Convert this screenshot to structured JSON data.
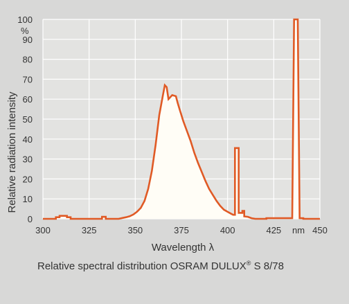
{
  "chart_data": {
    "type": "line",
    "title": "",
    "caption": "Relative spectral distribution OSRAM DULUX",
    "caption_sup": "®",
    "caption_tail": " S 8/78",
    "xlabel": "Wavelength λ",
    "ylabel": "Relative radiation intensity",
    "x_unit": "nm",
    "y_unit": "%",
    "xlim": [
      300,
      450
    ],
    "ylim": [
      0,
      100
    ],
    "x_ticks": [
      "300",
      "325",
      "350",
      "375",
      "400",
      "425",
      "450"
    ],
    "y_ticks": [
      "0",
      "10",
      "20",
      "30",
      "40",
      "50",
      "60",
      "70",
      "80",
      "90",
      "100"
    ],
    "grid": true,
    "colors": {
      "curve": "#e05a25",
      "fill": "#fffdf6",
      "plot_bg": "#e3e3e1",
      "grid": "#ffffff",
      "page_bg": "#d8d8d7"
    },
    "series": [
      {
        "values": [
          [
            300,
            0
          ],
          [
            307,
            0
          ],
          [
            307,
            0.8
          ],
          [
            309,
            0.8
          ],
          [
            309,
            1.5
          ],
          [
            313,
            1.5
          ],
          [
            313,
            0.8
          ],
          [
            315,
            0.8
          ],
          [
            315,
            0
          ],
          [
            332,
            0
          ],
          [
            332,
            1
          ],
          [
            334,
            1
          ],
          [
            334,
            0
          ],
          [
            341,
            0
          ],
          [
            343,
            0.4
          ],
          [
            345,
            0.8
          ],
          [
            347,
            1.3
          ],
          [
            349,
            2.2
          ],
          [
            351,
            3.6
          ],
          [
            353,
            5.5
          ],
          [
            355,
            9
          ],
          [
            357,
            15
          ],
          [
            359,
            24
          ],
          [
            361,
            37
          ],
          [
            363,
            52
          ],
          [
            365,
            62
          ],
          [
            366,
            67
          ],
          [
            367,
            66
          ],
          [
            368,
            60
          ],
          [
            369,
            61
          ],
          [
            370,
            62
          ],
          [
            372,
            61.5
          ],
          [
            373,
            58
          ],
          [
            374,
            55
          ],
          [
            376,
            49
          ],
          [
            378,
            44
          ],
          [
            380,
            39
          ],
          [
            382,
            33
          ],
          [
            384,
            28
          ],
          [
            386,
            23.5
          ],
          [
            388,
            19
          ],
          [
            390,
            15
          ],
          [
            392,
            12
          ],
          [
            394,
            9
          ],
          [
            396,
            6.5
          ],
          [
            398,
            4.6
          ],
          [
            400,
            3.5
          ],
          [
            402,
            2.5
          ],
          [
            403,
            2
          ],
          [
            404,
            2
          ],
          [
            404,
            35.5
          ],
          [
            406,
            35.5
          ],
          [
            406,
            3
          ],
          [
            408,
            3
          ],
          [
            408,
            4
          ],
          [
            409,
            4
          ],
          [
            409,
            1.2
          ],
          [
            411,
            1
          ],
          [
            413,
            0.3
          ],
          [
            415,
            0
          ],
          [
            421,
            0
          ],
          [
            421,
            0.3
          ],
          [
            435,
            0.3
          ],
          [
            436,
            100
          ],
          [
            438,
            100
          ],
          [
            439,
            0.3
          ],
          [
            441,
            0.3
          ],
          [
            441,
            0
          ],
          [
            450,
            0
          ]
        ]
      }
    ]
  }
}
